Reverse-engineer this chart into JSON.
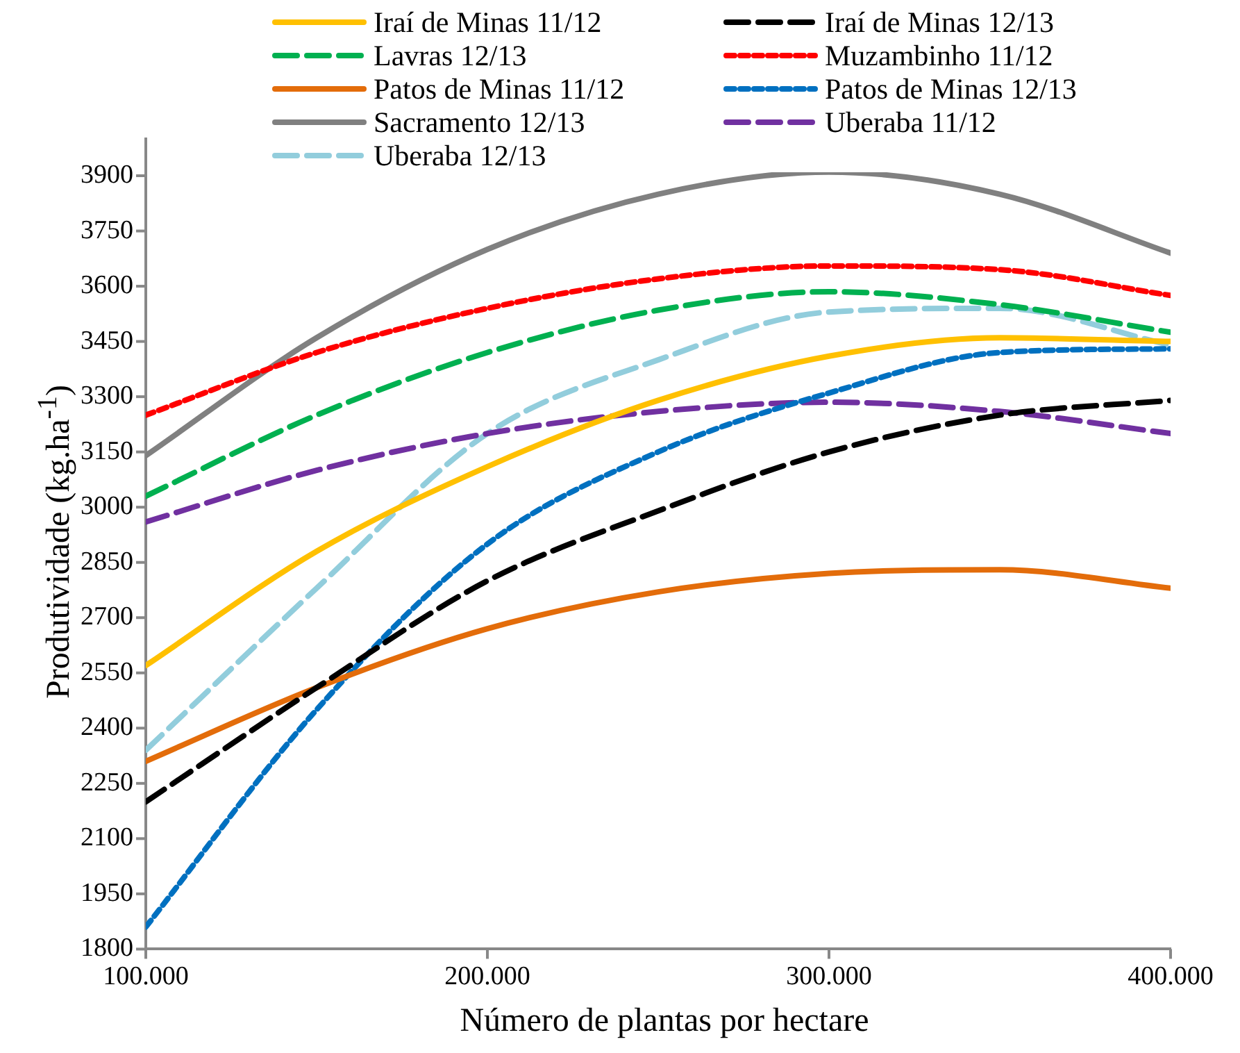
{
  "chart_data": {
    "type": "line",
    "xlabel": "Número de plantas por hectare",
    "ylabel": "Produtividade (kg.ha$^{-1}$)",
    "x": [
      100000,
      150000,
      200000,
      250000,
      300000,
      350000,
      400000
    ],
    "xlim": [
      100000,
      400000
    ],
    "xticks": [
      {
        "value": 100000,
        "label": "100.000"
      },
      {
        "value": 200000,
        "label": "200.000"
      },
      {
        "value": 300000,
        "label": "300.000"
      },
      {
        "value": 400000,
        "label": "400.000"
      }
    ],
    "ylim": [
      1800,
      4000
    ],
    "yticks": [
      1800,
      1950,
      2100,
      2250,
      2400,
      2550,
      2700,
      2850,
      3000,
      3150,
      3300,
      3450,
      3600,
      3750,
      3900
    ],
    "grid": false,
    "legend": "top",
    "marker": "none",
    "series": [
      {
        "name": "Iraí de Minas 11/12",
        "color": "#ffc000",
        "line_style": "solid",
        "values": [
          2570,
          2880,
          3110,
          3290,
          3410,
          3460,
          3450
        ]
      },
      {
        "name": "Iraí de Minas 12/13",
        "color": "#000000",
        "line_style": "dashed",
        "values": [
          2200,
          2510,
          2800,
          2990,
          3150,
          3250,
          3290
        ]
      },
      {
        "name": "Lavras 12/13",
        "color": "#00b050",
        "line_style": "dashed",
        "values": [
          3030,
          3250,
          3420,
          3535,
          3585,
          3550,
          3475
        ]
      },
      {
        "name": "Muzambinho 11/12",
        "color": "#ff0000",
        "line_style": "dotted",
        "values": [
          3250,
          3420,
          3540,
          3620,
          3655,
          3645,
          3575
        ]
      },
      {
        "name": "Patos de Minas 11/12",
        "color": "#e36c0a",
        "line_style": "solid",
        "values": [
          2310,
          2510,
          2670,
          2770,
          2820,
          2830,
          2780
        ]
      },
      {
        "name": "Patos de Minas 12/13",
        "color": "#0070c0",
        "line_style": "dotted",
        "values": [
          1860,
          2450,
          2900,
          3150,
          3310,
          3420,
          3430
        ]
      },
      {
        "name": "Sacramento 12/13",
        "color": "#808080",
        "line_style": "solid",
        "values": [
          3140,
          3460,
          3700,
          3850,
          3910,
          3850,
          3690
        ]
      },
      {
        "name": "Uberaba 11/12",
        "color": "#7030a0",
        "line_style": "dashed",
        "values": [
          2960,
          3100,
          3200,
          3260,
          3285,
          3260,
          3200
        ]
      },
      {
        "name": "Uberaba 12/13",
        "color": "#92cddc",
        "line_style": "dashed",
        "values": [
          2340,
          2780,
          3200,
          3400,
          3530,
          3540,
          3440
        ]
      }
    ]
  }
}
